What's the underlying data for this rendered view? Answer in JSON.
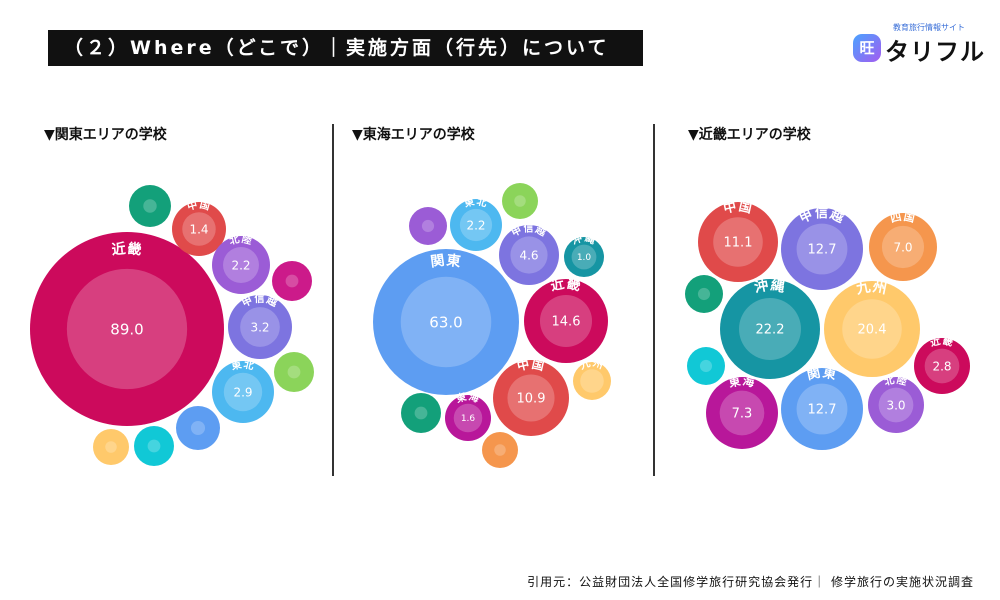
{
  "header": {
    "title": "（２）Where（どこで）｜実施方面（行先）について"
  },
  "logo": {
    "tagline": "教育旅行情報サイト",
    "badge": "旺",
    "name": "タリフル"
  },
  "footer": {
    "source": "引用元：公益財団法人全国修学旅行研究協会発行｜ 修学旅行の実施状況調査"
  },
  "colors": {
    "中国": "#e04a4a",
    "北陸": "#9b5cd6",
    "甲信越": "#7d74e0",
    "東北": "#4db8f0",
    "近畿": "#cc0a5c",
    "関東": "#5d9df2",
    "東海": "#b8179a",
    "九州": "#ffc96b",
    "沖縄": "#1695a3",
    "四国": "#f5964d",
    "teal": "#13a07a",
    "magenta": "#cc1a8a",
    "lime": "#8bd45a",
    "peach": "#ffc96b",
    "cyan": "#11c8d6",
    "blue": "#5d9df2",
    "purple": "#9b5cd6",
    "orange": "#f5964d",
    "green": "#13a07a"
  },
  "chart_data": [
    {
      "type": "bubble",
      "title": "▼関東エリアの学校",
      "bubbles": [
        {
          "label": "近畿",
          "value": 89.0
        },
        {
          "label": "中国",
          "value": 1.4
        },
        {
          "label": "北陸",
          "value": 2.2
        },
        {
          "label": "甲信越",
          "value": 3.2
        },
        {
          "label": "東北",
          "value": 2.9
        },
        {
          "label": "",
          "color_key": "teal"
        },
        {
          "label": "",
          "color_key": "magenta"
        },
        {
          "label": "",
          "color_key": "lime"
        },
        {
          "label": "",
          "color_key": "blue"
        },
        {
          "label": "",
          "color_key": "cyan"
        },
        {
          "label": "",
          "color_key": "peach"
        }
      ]
    },
    {
      "type": "bubble",
      "title": "▼東海エリアの学校",
      "bubbles": [
        {
          "label": "関東",
          "value": 63.0
        },
        {
          "label": "近畿",
          "value": 14.6
        },
        {
          "label": "中国",
          "value": 10.9
        },
        {
          "label": "甲信越",
          "value": 4.6
        },
        {
          "label": "東北",
          "value": 2.2
        },
        {
          "label": "東海",
          "value": 1.6
        },
        {
          "label": "沖縄",
          "value": 1.0
        },
        {
          "label": "九州"
        },
        {
          "label": "",
          "color_key": "purple"
        },
        {
          "label": "",
          "color_key": "lime"
        },
        {
          "label": "",
          "color_key": "green"
        },
        {
          "label": "",
          "color_key": "orange"
        }
      ]
    },
    {
      "type": "bubble",
      "title": "▼近畿エリアの学校",
      "bubbles": [
        {
          "label": "中国",
          "value": 11.1
        },
        {
          "label": "甲信越",
          "value": 12.7
        },
        {
          "label": "四国",
          "value": 7.0
        },
        {
          "label": "沖縄",
          "value": 22.2
        },
        {
          "label": "九州",
          "value": 20.4
        },
        {
          "label": "近畿",
          "value": 2.8
        },
        {
          "label": "東海",
          "value": 7.3
        },
        {
          "label": "関東",
          "value": 12.7
        },
        {
          "label": "北陸",
          "value": 3.0
        },
        {
          "label": "",
          "color_key": "teal"
        },
        {
          "label": "",
          "color_key": "cyan"
        }
      ]
    }
  ]
}
